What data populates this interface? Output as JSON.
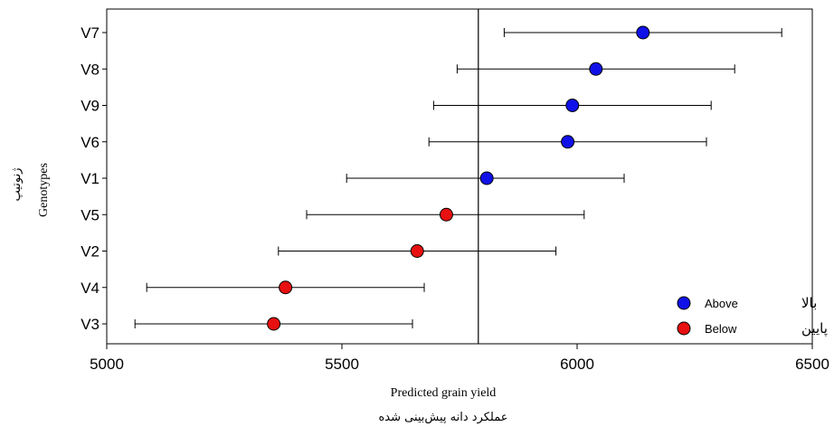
{
  "chart_data": {
    "type": "scatter",
    "subtype": "interval-plot",
    "categories": [
      "V7",
      "V8",
      "V9",
      "V6",
      "V1",
      "V5",
      "V2",
      "V4",
      "V3"
    ],
    "estimate": [
      6140,
      6040,
      5990,
      5980,
      5808,
      5722,
      5660,
      5380,
      5355
    ],
    "lower": [
      5845,
      5745,
      5695,
      5685,
      5510,
      5425,
      5365,
      5085,
      5060
    ],
    "upper": [
      6435,
      6335,
      6285,
      6275,
      6100,
      6015,
      5955,
      5675,
      5650
    ],
    "group": [
      "Above",
      "Above",
      "Above",
      "Above",
      "Above",
      "Below",
      "Below",
      "Below",
      "Below"
    ],
    "reference_line": 5790,
    "xlim": [
      5000,
      6500
    ],
    "xticks": [
      5000,
      5500,
      6000,
      6500
    ],
    "xlabel": "Predicted grain yield",
    "xlabel_fa": "عملکرد دانه پیش‌بینی شده",
    "ylabel": "Genotypes",
    "ylabel_fa": "ژنوتیپ",
    "legend_position": "bottom-right",
    "legend": [
      {
        "key": "Above",
        "label": "Above",
        "label_fa": "بالا",
        "color": "#1010e8"
      },
      {
        "key": "Below",
        "label": "Below",
        "label_fa": "پایین",
        "color": "#e81010"
      }
    ]
  }
}
